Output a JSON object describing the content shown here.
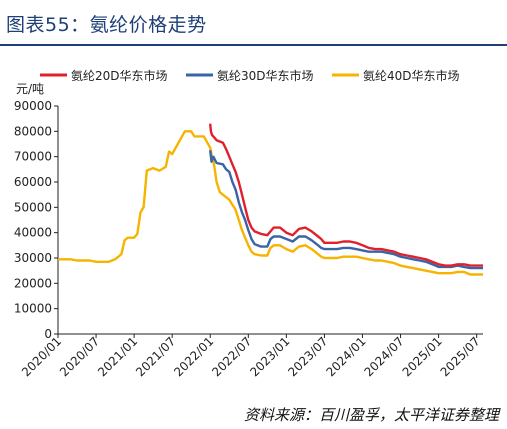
{
  "header": {
    "title": "图表55：氨纶价格走势"
  },
  "footer": {
    "source": "资料来源：百川盈孚，太平洋证券整理"
  },
  "colors": {
    "red": "#e0202d",
    "blue": "#3a64a8",
    "yellow": "#f6b400",
    "title": "#1f3f78"
  },
  "chart_data": {
    "type": "line",
    "unit": "元/吨",
    "ylim": [
      0,
      90000
    ],
    "yticks": [
      0,
      10000,
      20000,
      30000,
      40000,
      50000,
      60000,
      70000,
      80000,
      90000
    ],
    "xlim": [
      "2020-01",
      "2025-08"
    ],
    "xticks": [
      "2020/01",
      "2020/07",
      "2021/01",
      "2021/07",
      "2022/01",
      "2022/07",
      "2023/01",
      "2023/07",
      "2024/01",
      "2024/07",
      "2025/01",
      "2025/07"
    ],
    "legend_position": "top",
    "series": [
      {
        "name": "氨纶20D华东市场",
        "color": "#e0202d",
        "points": [
          [
            "2022-01",
            83000
          ],
          [
            "2022-01.1",
            80000
          ],
          [
            "2022-01.3",
            78500
          ],
          [
            "2022-02",
            76500
          ],
          [
            "2022-03",
            75500
          ],
          [
            "2022-03.5",
            73000
          ],
          [
            "2022-04",
            70000
          ],
          [
            "2022-04.5",
            67000
          ],
          [
            "2022-05",
            64000
          ],
          [
            "2022-05.5",
            60000
          ],
          [
            "2022-06",
            55000
          ],
          [
            "2022-06.5",
            50000
          ],
          [
            "2022-07",
            45000
          ],
          [
            "2022-07.5",
            42000
          ],
          [
            "2022-08",
            40500
          ],
          [
            "2022-09",
            39500
          ],
          [
            "2022-10",
            39000
          ],
          [
            "2022-10.5",
            40500
          ],
          [
            "2022-11",
            42000
          ],
          [
            "2022-12",
            42000
          ],
          [
            "2023-01",
            40000
          ],
          [
            "2023-02",
            39000
          ],
          [
            "2023-03",
            41500
          ],
          [
            "2023-04",
            42000
          ],
          [
            "2023-05",
            40500
          ],
          [
            "2023-06",
            38500
          ],
          [
            "2023-06.5",
            37500
          ],
          [
            "2023-07",
            36000
          ],
          [
            "2023-08",
            36000
          ],
          [
            "2023-09",
            36000
          ],
          [
            "2023-10",
            36500
          ],
          [
            "2023-11",
            36500
          ],
          [
            "2023-12",
            36000
          ],
          [
            "2024-01",
            35000
          ],
          [
            "2024-02",
            34000
          ],
          [
            "2024-03",
            33500
          ],
          [
            "2024-04",
            33500
          ],
          [
            "2024-05",
            33000
          ],
          [
            "2024-06",
            32500
          ],
          [
            "2024-07",
            31500
          ],
          [
            "2024-08",
            31000
          ],
          [
            "2024-09",
            30500
          ],
          [
            "2024-10",
            30000
          ],
          [
            "2024-11",
            29500
          ],
          [
            "2024-12",
            28500
          ],
          [
            "2025-01",
            27500
          ],
          [
            "2025-02",
            27000
          ],
          [
            "2025-03",
            27000
          ],
          [
            "2025-04",
            27500
          ],
          [
            "2025-05",
            27500
          ],
          [
            "2025-06",
            27000
          ],
          [
            "2025-07",
            27000
          ],
          [
            "2025-08",
            27000
          ]
        ]
      },
      {
        "name": "氨纶30D华东市场",
        "color": "#3a64a8",
        "points": [
          [
            "2022-01",
            72500
          ],
          [
            "2022-01.2",
            68000
          ],
          [
            "2022-01.5",
            70000
          ],
          [
            "2022-02",
            67500
          ],
          [
            "2022-03",
            67000
          ],
          [
            "2022-03.5",
            65000
          ],
          [
            "2022-04",
            64000
          ],
          [
            "2022-04.5",
            60000
          ],
          [
            "2022-05",
            57000
          ],
          [
            "2022-05.5",
            52000
          ],
          [
            "2022-06",
            48000
          ],
          [
            "2022-06.5",
            45000
          ],
          [
            "2022-07",
            41000
          ],
          [
            "2022-07.5",
            37500
          ],
          [
            "2022-08",
            35500
          ],
          [
            "2022-09",
            34500
          ],
          [
            "2022-10",
            34500
          ],
          [
            "2022-10.5",
            37500
          ],
          [
            "2022-11",
            38500
          ],
          [
            "2022-12",
            38500
          ],
          [
            "2023-01",
            37500
          ],
          [
            "2023-02",
            36500
          ],
          [
            "2023-03",
            38500
          ],
          [
            "2023-04",
            38500
          ],
          [
            "2023-05",
            37000
          ],
          [
            "2023-06",
            35000
          ],
          [
            "2023-06.5",
            34000
          ],
          [
            "2023-07",
            33500
          ],
          [
            "2023-08",
            33500
          ],
          [
            "2023-09",
            33500
          ],
          [
            "2023-10",
            34000
          ],
          [
            "2023-11",
            34000
          ],
          [
            "2023-12",
            33500
          ],
          [
            "2024-01",
            33000
          ],
          [
            "2024-02",
            32500
          ],
          [
            "2024-03",
            32500
          ],
          [
            "2024-04",
            32500
          ],
          [
            "2024-05",
            32000
          ],
          [
            "2024-06",
            31500
          ],
          [
            "2024-07",
            30500
          ],
          [
            "2024-08",
            30000
          ],
          [
            "2024-09",
            29500
          ],
          [
            "2024-10",
            29000
          ],
          [
            "2024-11",
            28500
          ],
          [
            "2024-12",
            27500
          ],
          [
            "2025-01",
            26500
          ],
          [
            "2025-02",
            26500
          ],
          [
            "2025-03",
            26500
          ],
          [
            "2025-04",
            27000
          ],
          [
            "2025-05",
            26500
          ],
          [
            "2025-06",
            26000
          ],
          [
            "2025-07",
            26000
          ],
          [
            "2025-08",
            26000
          ]
        ]
      },
      {
        "name": "氨纶40D华东市场",
        "color": "#f6b400",
        "points": [
          [
            "2020-01",
            29500
          ],
          [
            "2020-02",
            29500
          ],
          [
            "2020-03",
            29500
          ],
          [
            "2020-04",
            29000
          ],
          [
            "2020-05",
            29000
          ],
          [
            "2020-06",
            29000
          ],
          [
            "2020-07",
            28500
          ],
          [
            "2020-08",
            28500
          ],
          [
            "2020-09",
            28500
          ],
          [
            "2020-10",
            29500
          ],
          [
            "2020-11",
            31500
          ],
          [
            "2020-11.5",
            37000
          ],
          [
            "2020-12",
            38000
          ],
          [
            "2021-01",
            38000
          ],
          [
            "2021-01.5",
            39500
          ],
          [
            "2021-02",
            48000
          ],
          [
            "2021-02.5",
            50000
          ],
          [
            "2021-03",
            64500
          ],
          [
            "2021-04",
            65500
          ],
          [
            "2021-05",
            64500
          ],
          [
            "2021-06",
            66000
          ],
          [
            "2021-06.5",
            72000
          ],
          [
            "2021-07",
            71000
          ],
          [
            "2021-08",
            75500
          ],
          [
            "2021-09",
            80000
          ],
          [
            "2021-10",
            80000
          ],
          [
            "2021-10.5",
            78000
          ],
          [
            "2021-11",
            78000
          ],
          [
            "2021-12",
            78000
          ],
          [
            "2022-01",
            73500
          ],
          [
            "2022-01.3",
            70000
          ],
          [
            "2022-01.6",
            67000
          ],
          [
            "2022-02",
            60000
          ],
          [
            "2022-02.5",
            56000
          ],
          [
            "2022-03",
            55000
          ],
          [
            "2022-04",
            53000
          ],
          [
            "2022-04.5",
            51000
          ],
          [
            "2022-05",
            49000
          ],
          [
            "2022-05.5",
            45000
          ],
          [
            "2022-06",
            41000
          ],
          [
            "2022-06.5",
            38000
          ],
          [
            "2022-07",
            35000
          ],
          [
            "2022-07.5",
            32500
          ],
          [
            "2022-08",
            31500
          ],
          [
            "2022-09",
            31000
          ],
          [
            "2022-10",
            31000
          ],
          [
            "2022-10.5",
            34000
          ],
          [
            "2022-11",
            35000
          ],
          [
            "2022-12",
            35000
          ],
          [
            "2023-01",
            33500
          ],
          [
            "2023-02",
            32500
          ],
          [
            "2023-03",
            34500
          ],
          [
            "2023-04",
            35000
          ],
          [
            "2023-05",
            33500
          ],
          [
            "2023-06",
            31500
          ],
          [
            "2023-06.5",
            30500
          ],
          [
            "2023-07",
            30000
          ],
          [
            "2023-08",
            30000
          ],
          [
            "2023-09",
            30000
          ],
          [
            "2023-10",
            30500
          ],
          [
            "2023-11",
            30500
          ],
          [
            "2023-12",
            30500
          ],
          [
            "2024-01",
            30000
          ],
          [
            "2024-02",
            29500
          ],
          [
            "2024-03",
            29000
          ],
          [
            "2024-04",
            29000
          ],
          [
            "2024-05",
            28500
          ],
          [
            "2024-06",
            28000
          ],
          [
            "2024-07",
            27000
          ],
          [
            "2024-08",
            26500
          ],
          [
            "2024-09",
            26000
          ],
          [
            "2024-10",
            25500
          ],
          [
            "2024-11",
            25000
          ],
          [
            "2024-12",
            24500
          ],
          [
            "2025-01",
            24000
          ],
          [
            "2025-02",
            24000
          ],
          [
            "2025-03",
            24000
          ],
          [
            "2025-04",
            24500
          ],
          [
            "2025-05",
            24500
          ],
          [
            "2025-06",
            23500
          ],
          [
            "2025-07",
            23500
          ],
          [
            "2025-08",
            23500
          ]
        ]
      }
    ]
  }
}
